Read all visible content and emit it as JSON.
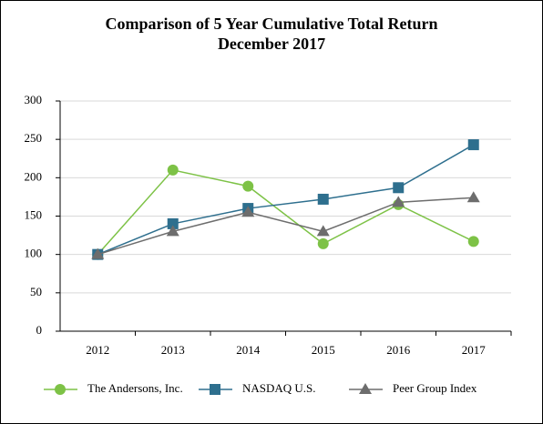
{
  "chart_data": {
    "type": "line",
    "title": "Comparison of 5 Year Cumulative Total Return",
    "subtitle": "December 2017",
    "categories": [
      "2012",
      "2013",
      "2014",
      "2015",
      "2016",
      "2017"
    ],
    "series": [
      {
        "name": "The Andersons, Inc.",
        "color": "#7dc246",
        "marker": "circle",
        "values": [
          100,
          210,
          189,
          114,
          165,
          117
        ]
      },
      {
        "name": "NASDAQ U.S.",
        "color": "#2e6f8e",
        "marker": "square",
        "values": [
          100,
          140,
          160,
          172,
          187,
          243
        ]
      },
      {
        "name": "Peer Group Index",
        "color": "#6d6d6d",
        "marker": "triangle",
        "values": [
          100,
          130,
          155,
          130,
          168,
          174
        ]
      }
    ],
    "ylim": [
      0,
      300
    ],
    "yticks": [
      0,
      50,
      100,
      150,
      200,
      250,
      300
    ],
    "grid": true,
    "legend": "bottom"
  }
}
